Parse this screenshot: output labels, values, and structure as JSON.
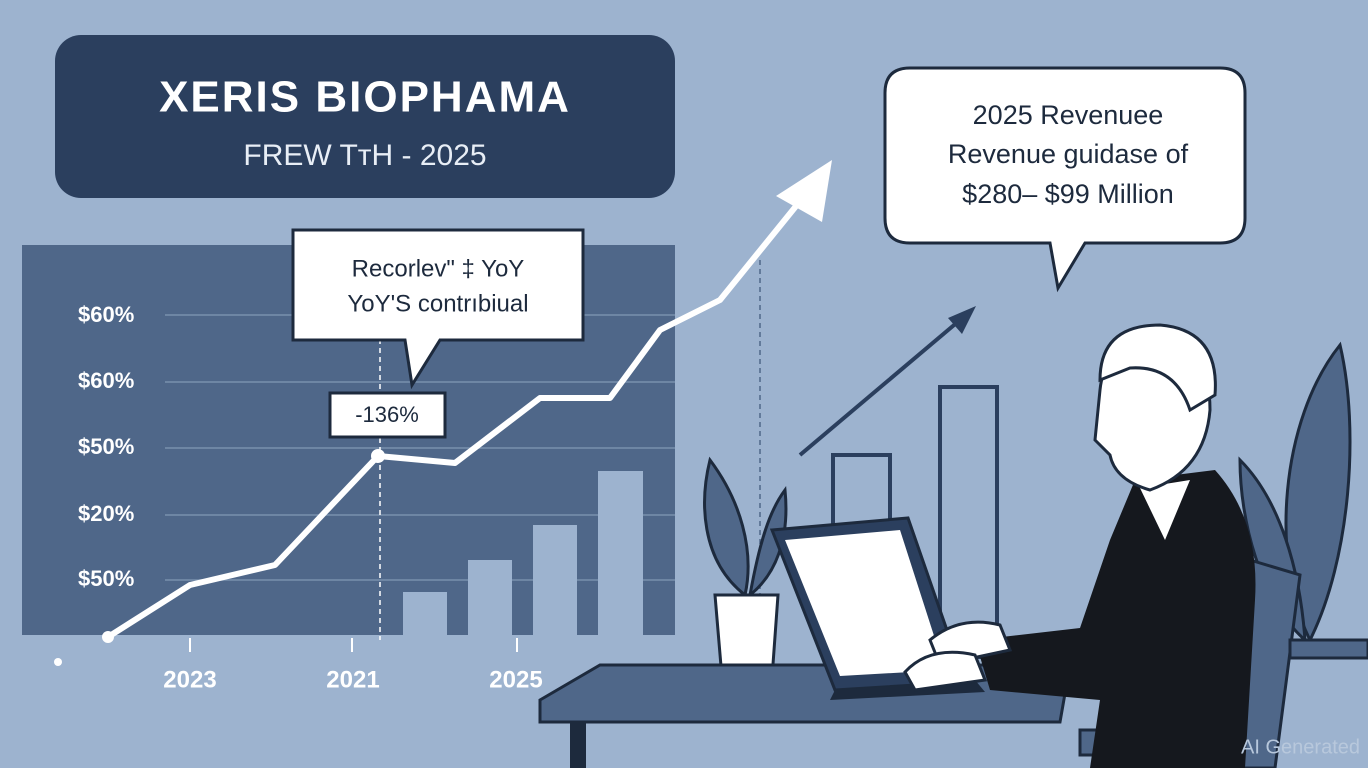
{
  "header": {
    "title": "XERIS BIOPHAMA",
    "subtitle": "FREW TтH - 2025"
  },
  "callout": {
    "lines": [
      "Recorlev\" ‡ YoY",
      "YoY'S contrıbiual"
    ],
    "badge": "-136%"
  },
  "speech": {
    "lines": [
      "2025 Revenuee",
      "Revenue guidase of",
      "$280– $99 Million"
    ]
  },
  "chart": {
    "y_labels": [
      "$60%",
      "$60%",
      "$50%",
      "$20%",
      "$50%"
    ],
    "x_labels": [
      "2023",
      "2021",
      "2025"
    ]
  },
  "watermark": "AI Generated"
}
